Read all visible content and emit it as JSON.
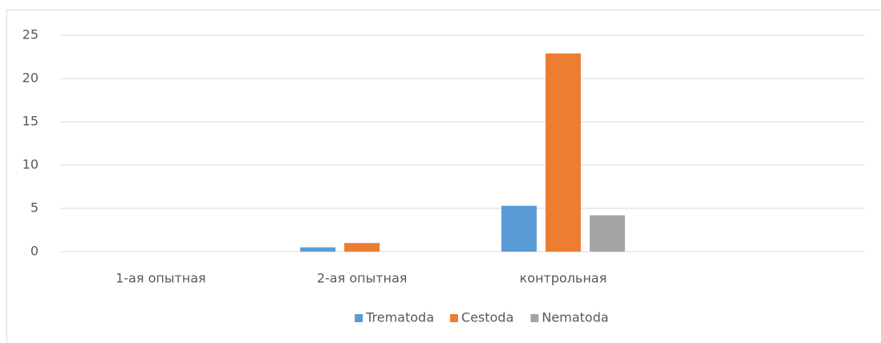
{
  "chart_data": {
    "type": "bar",
    "categories": [
      "1-ая опытная",
      "2-ая опытная",
      "контрольная",
      null
    ],
    "series": [
      {
        "name": "Trematoda",
        "color": "#5b9bd5",
        "values": [
          0,
          0.5,
          5.3,
          null
        ]
      },
      {
        "name": "Cestoda",
        "color": "#ed7d31",
        "values": [
          0,
          1,
          22.9,
          null
        ]
      },
      {
        "name": "Nematoda",
        "color": "#a5a5a5",
        "values": [
          0,
          0,
          4.2,
          null
        ]
      }
    ],
    "ylim": [
      0,
      25
    ],
    "yticks": [
      0,
      5,
      10,
      15,
      20,
      25
    ],
    "grid": true,
    "legend": "bottom"
  }
}
